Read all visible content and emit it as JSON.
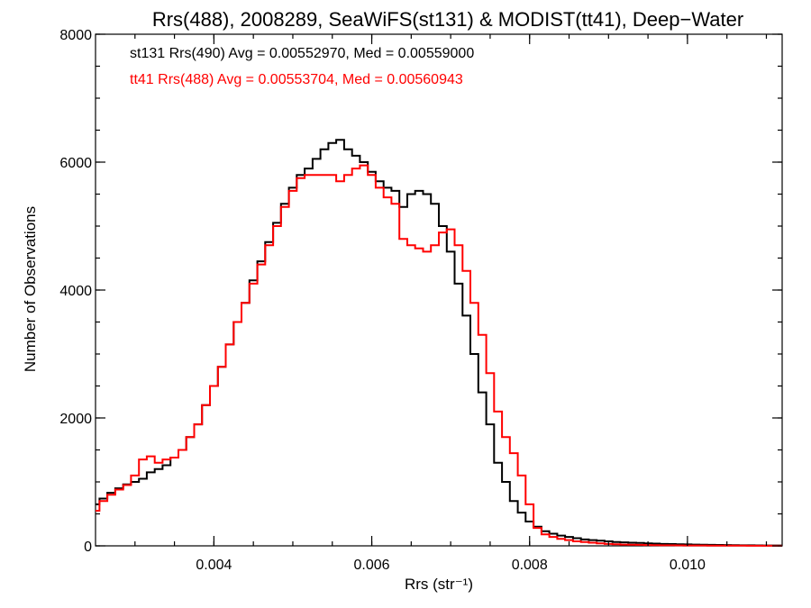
{
  "chart_data": {
    "type": "line",
    "title": "Rrs(488), 2008289, SeaWiFS(st131) & MODIST(tt41), Deep−Water",
    "xlabel": "Rrs (str⁻¹)",
    "ylabel": "Number of Observations",
    "xlim": [
      0.0025,
      0.0112
    ],
    "ylim": [
      0,
      8000
    ],
    "x_major_ticks": [
      0.004,
      0.006,
      0.008,
      0.01
    ],
    "x_tick_labels": [
      "0.004",
      "0.006",
      "0.008",
      "0.010"
    ],
    "x_minor_step": 0.0005,
    "y_major_ticks": [
      0,
      2000,
      4000,
      6000,
      8000
    ],
    "y_tick_labels": [
      "0",
      "2000",
      "4000",
      "6000",
      "8000"
    ],
    "y_minor_step": 500,
    "step_style": "histogram",
    "grid": false,
    "legend": {
      "placement": "top-left",
      "entries": [
        {
          "text": "st131 Rrs(490) Avg = 0.00552970, Med = 0.00559000",
          "color": "#000000"
        },
        {
          "text": "tt41 Rrs(488) Avg = 0.00553704, Med = 0.00560943",
          "color": "#ff0000"
        }
      ]
    },
    "x": [
      0.0025,
      0.0026,
      0.0027,
      0.0028,
      0.0029,
      0.003,
      0.0031,
      0.0032,
      0.0033,
      0.0034,
      0.0035,
      0.0036,
      0.0037,
      0.0038,
      0.0039,
      0.004,
      0.0041,
      0.0042,
      0.0043,
      0.0044,
      0.0045,
      0.0046,
      0.0047,
      0.0048,
      0.0049,
      0.005,
      0.0051,
      0.0052,
      0.0053,
      0.0054,
      0.0055,
      0.0056,
      0.0057,
      0.0058,
      0.0059,
      0.006,
      0.0061,
      0.0062,
      0.0063,
      0.0064,
      0.0065,
      0.0066,
      0.0067,
      0.0068,
      0.0069,
      0.007,
      0.0071,
      0.0072,
      0.0073,
      0.0074,
      0.0075,
      0.0076,
      0.0077,
      0.0078,
      0.0079,
      0.008,
      0.0081,
      0.0082,
      0.0083,
      0.0084,
      0.0085,
      0.0086,
      0.0087,
      0.0088,
      0.0089,
      0.009,
      0.0091,
      0.0092,
      0.0093,
      0.0094,
      0.0095,
      0.0096,
      0.0097,
      0.0098,
      0.0099,
      0.01,
      0.0101,
      0.0102,
      0.0103,
      0.0104,
      0.0105,
      0.0106,
      0.0107,
      0.0108,
      0.0109,
      0.011,
      0.0111,
      0.0112
    ],
    "series": [
      {
        "name": "st131 Rrs(490)",
        "color": "#000000",
        "values": [
          650,
          740,
          830,
          900,
          960,
          1000,
          1050,
          1150,
          1200,
          1260,
          1380,
          1500,
          1700,
          1900,
          2200,
          2500,
          2800,
          3150,
          3500,
          3800,
          4150,
          4450,
          4750,
          5050,
          5350,
          5600,
          5800,
          5900,
          6050,
          6200,
          6300,
          6350,
          6200,
          6100,
          6000,
          5850,
          5700,
          5600,
          5550,
          5300,
          5500,
          5550,
          5500,
          5350,
          5000,
          4600,
          4100,
          3600,
          3000,
          2400,
          1900,
          1300,
          1000,
          700,
          520,
          380,
          300,
          230,
          190,
          160,
          140,
          120,
          100,
          90,
          80,
          70,
          60,
          55,
          50,
          45,
          40,
          35,
          30,
          28,
          25,
          22,
          20,
          18,
          16,
          14,
          12,
          10,
          9,
          8,
          7,
          6,
          5,
          5
        ]
      },
      {
        "name": "tt41 Rrs(488)",
        "color": "#ff0000",
        "values": [
          550,
          700,
          800,
          880,
          950,
          1100,
          1350,
          1400,
          1300,
          1350,
          1380,
          1500,
          1700,
          1900,
          2200,
          2500,
          2800,
          3150,
          3500,
          3800,
          4100,
          4400,
          4700,
          5000,
          5300,
          5550,
          5750,
          5800,
          5800,
          5800,
          5800,
          5700,
          5800,
          5900,
          5950,
          5800,
          5600,
          5450,
          5350,
          4800,
          4700,
          4650,
          4600,
          4700,
          4900,
          4950,
          4700,
          4300,
          3800,
          3300,
          2700,
          2100,
          1700,
          1450,
          1100,
          650,
          280,
          180,
          140,
          110,
          90,
          70,
          60,
          50,
          40,
          30,
          25,
          20,
          18,
          15,
          12,
          10,
          9,
          8,
          7,
          6,
          5,
          5,
          4,
          4,
          3,
          3,
          3,
          2,
          2,
          2,
          2,
          2
        ]
      }
    ]
  }
}
